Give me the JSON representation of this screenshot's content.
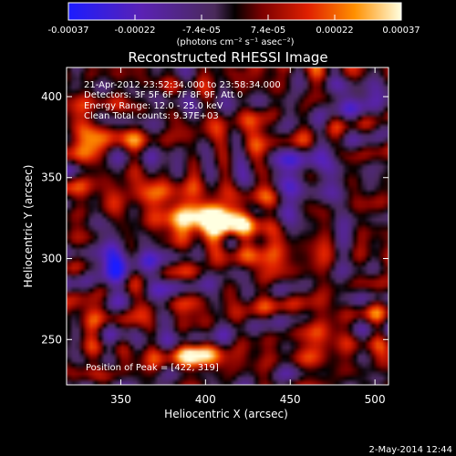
{
  "chart_data": {
    "type": "heatmap",
    "title": "Reconstructed RHESSI Image",
    "xlabel": "Heliocentric X (arcsec)",
    "ylabel": "Heliocentric Y (arcsec)",
    "xlim": [
      318,
      508
    ],
    "ylim": [
      222,
      418
    ],
    "x_ticks": [
      350,
      400,
      450,
      500
    ],
    "y_ticks": [
      250,
      300,
      350,
      400
    ],
    "colorbar": {
      "range": [
        -0.00037,
        0.00037
      ],
      "tick_labels": [
        "-0.00037",
        "-0.00022",
        "-7.4e-05",
        "7.4e-05",
        "0.00022",
        "0.00037"
      ],
      "units_label": "(photons cm⁻² s⁻¹ asec⁻²)"
    },
    "annotation_lines": [
      "21-Apr-2012 23:52:34.000 to 23:58:34.000",
      "Detectors: 3F 5F 6F 7F 8F 9F, Att 0",
      "Energy Range: 12.0 - 25.0 keV",
      "Clean     Total counts: 9.37E+03"
    ],
    "peak_label": "Position of Peak = [422, 319]",
    "peak_position": [
      422,
      319
    ],
    "sources": [
      {
        "x": 398,
        "y": 325,
        "sx": 14,
        "sy": 8,
        "amp": 1.0
      },
      {
        "x": 415,
        "y": 322,
        "sx": 10,
        "sy": 7,
        "amp": 0.9
      },
      {
        "x": 375,
        "y": 333,
        "sx": 8,
        "sy": 10,
        "amp": 0.55
      },
      {
        "x": 395,
        "y": 240,
        "sx": 12,
        "sy": 6,
        "amp": 0.7
      },
      {
        "x": 335,
        "y": 375,
        "sx": 10,
        "sy": 14,
        "amp": 0.5
      },
      {
        "x": 345,
        "y": 330,
        "sx": 8,
        "sy": 10,
        "amp": 0.35
      },
      {
        "x": 440,
        "y": 300,
        "sx": 14,
        "sy": 12,
        "amp": 0.35
      },
      {
        "x": 470,
        "y": 250,
        "sx": 14,
        "sy": 12,
        "amp": 0.35
      },
      {
        "x": 425,
        "y": 380,
        "sx": 12,
        "sy": 8,
        "amp": 0.3
      },
      {
        "x": 330,
        "y": 260,
        "sx": 10,
        "sy": 8,
        "amp": 0.3
      },
      {
        "x": 350,
        "y": 300,
        "sx": 14,
        "sy": 12,
        "amp": -0.6
      },
      {
        "x": 460,
        "y": 350,
        "sx": 12,
        "sy": 14,
        "amp": -0.45
      },
      {
        "x": 490,
        "y": 400,
        "sx": 10,
        "sy": 10,
        "amp": -0.4
      }
    ]
  },
  "footer": {
    "date": "2-May-2014 12:44"
  }
}
